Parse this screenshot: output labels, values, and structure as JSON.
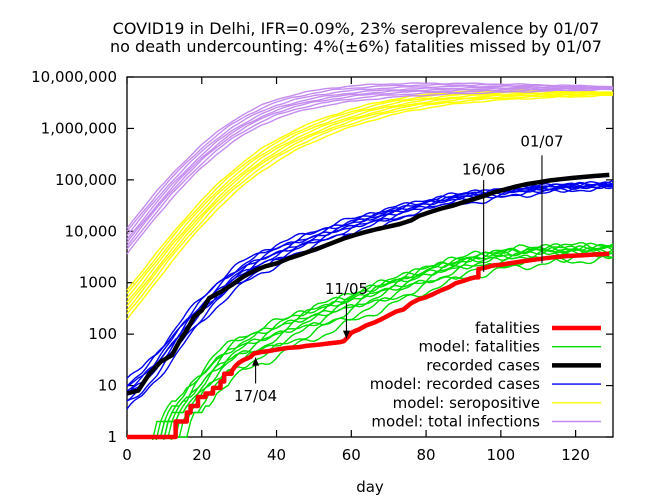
{
  "title": {
    "line1": "COVID19 in Delhi, IFR=0.09%, 23% seroprevalence by 01/07",
    "line2": "no death undercounting: 4%(±6%) fatalities missed by 01/07"
  },
  "chart_data": {
    "type": "line",
    "xlabel": "day",
    "x_range": [
      0,
      130
    ],
    "y_scale": "log",
    "y_range": [
      1,
      10000000
    ],
    "grid": false,
    "legend_position": "bottom-right-inside",
    "x_ticks": [
      {
        "v": 0,
        "label": "0"
      },
      {
        "v": 20,
        "label": "20"
      },
      {
        "v": 40,
        "label": "40"
      },
      {
        "v": 60,
        "label": "60"
      },
      {
        "v": 80,
        "label": "80"
      },
      {
        "v": 100,
        "label": "100"
      },
      {
        "v": 120,
        "label": "120"
      }
    ],
    "y_ticks": [
      {
        "v": 1,
        "label": "1"
      },
      {
        "v": 10,
        "label": "10"
      },
      {
        "v": 100,
        "label": "100"
      },
      {
        "v": 1000,
        "label": "1000"
      },
      {
        "v": 10000,
        "label": "10,000"
      },
      {
        "v": 100000,
        "label": "100,000"
      },
      {
        "v": 1000000,
        "label": "1,000,000"
      },
      {
        "v": 10000000,
        "label": "10,000,000"
      }
    ],
    "annotations": [
      {
        "label": "17/04",
        "day": 34.4,
        "from_value": 11,
        "to_value": 35,
        "head": "up",
        "label_value": 6.3
      },
      {
        "label": "11/05",
        "day": 58.7,
        "from_value": 400,
        "to_value": 82,
        "head": "down",
        "label_value": 760
      },
      {
        "label": "16/06",
        "day": 95.4,
        "from_value": 99000,
        "to_value": 1630,
        "head": "none",
        "label_value": 160000
      },
      {
        "label": "01/07",
        "day": 111,
        "from_value": 300000,
        "to_value": 2400,
        "head": "none",
        "label_value": 560000
      }
    ],
    "draw_order": [
      4,
      5,
      3,
      2,
      1,
      0
    ],
    "series": [
      {
        "name": "fatalities",
        "color": "#ff0000",
        "width": 4.5,
        "points": [
          [
            0,
            1
          ],
          [
            13,
            1
          ],
          [
            13,
            2
          ],
          [
            16,
            2
          ],
          [
            16,
            3
          ],
          [
            17,
            3
          ],
          [
            17,
            4
          ],
          [
            19,
            4
          ],
          [
            19,
            6
          ],
          [
            21,
            6
          ],
          [
            21,
            7
          ],
          [
            23,
            7
          ],
          [
            23,
            9
          ],
          [
            25,
            9
          ],
          [
            25,
            12
          ],
          [
            26,
            12
          ],
          [
            26,
            17
          ],
          [
            28,
            17
          ],
          [
            28,
            19
          ],
          [
            29,
            24
          ],
          [
            30,
            28
          ],
          [
            31,
            31
          ],
          [
            33,
            36
          ],
          [
            34,
            42
          ],
          [
            36,
            45
          ],
          [
            38,
            47
          ],
          [
            40,
            50
          ],
          [
            43,
            54
          ],
          [
            46,
            56
          ],
          [
            48,
            59
          ],
          [
            51,
            62
          ],
          [
            54,
            66
          ],
          [
            57,
            70
          ],
          [
            58,
            73
          ],
          [
            59,
            87
          ],
          [
            60,
            106
          ],
          [
            61,
            115
          ],
          [
            62,
            123
          ],
          [
            64,
            148
          ],
          [
            66,
            166
          ],
          [
            68,
            194
          ],
          [
            70,
            231
          ],
          [
            72,
            276
          ],
          [
            74,
            303
          ],
          [
            76,
            398
          ],
          [
            78,
            473
          ],
          [
            80,
            523
          ],
          [
            82,
            606
          ],
          [
            84,
            708
          ],
          [
            86,
            812
          ],
          [
            88,
            984
          ],
          [
            90,
            1085
          ],
          [
            92,
            1214
          ],
          [
            93,
            1271
          ],
          [
            94,
            1271
          ],
          [
            94,
            1837
          ],
          [
            96,
            1969
          ],
          [
            98,
            2175
          ],
          [
            100,
            2233
          ],
          [
            102,
            2365
          ],
          [
            104,
            2480
          ],
          [
            106,
            2623
          ],
          [
            108,
            2742
          ],
          [
            110,
            2864
          ],
          [
            112,
            3000
          ],
          [
            114,
            3115
          ],
          [
            116,
            3213
          ],
          [
            118,
            3300
          ],
          [
            120,
            3371
          ],
          [
            122,
            3432
          ],
          [
            124,
            3487
          ],
          [
            126,
            3545
          ],
          [
            129,
            3663
          ]
        ]
      },
      {
        "name": "model: fatalities",
        "color": "#00dd00",
        "width": 1.4,
        "points": [
          [
            6,
            0.5
          ],
          [
            9,
            1
          ],
          [
            12,
            2
          ],
          [
            15,
            3.5
          ],
          [
            18,
            6.5
          ],
          [
            21,
            12
          ],
          [
            24,
            21
          ],
          [
            27,
            33
          ],
          [
            30,
            46
          ],
          [
            33,
            58
          ],
          [
            36,
            72
          ],
          [
            39,
            92
          ],
          [
            42,
            118
          ],
          [
            45,
            148
          ],
          [
            48,
            180
          ],
          [
            51,
            220
          ],
          [
            54,
            268
          ],
          [
            57,
            330
          ],
          [
            60,
            400
          ],
          [
            63,
            490
          ],
          [
            66,
            600
          ],
          [
            69,
            730
          ],
          [
            72,
            880
          ],
          [
            75,
            1060
          ],
          [
            78,
            1270
          ],
          [
            81,
            1520
          ],
          [
            84,
            1800
          ],
          [
            87,
            2100
          ],
          [
            90,
            2420
          ],
          [
            93,
            2750
          ],
          [
            96,
            2900
          ],
          [
            99,
            3200
          ],
          [
            102,
            3450
          ],
          [
            105,
            3680
          ],
          [
            108,
            3900
          ],
          [
            111,
            4050
          ],
          [
            114,
            4180
          ],
          [
            117,
            4280
          ],
          [
            120,
            4370
          ],
          [
            124,
            4460
          ],
          [
            130,
            4570
          ]
        ],
        "ensemble": {
          "starts": [
            0.3,
            0.45,
            0.6,
            0.78,
            0.95,
            1.1,
            1.3,
            1.55,
            1.85,
            2.3
          ],
          "ends": [
            0.64,
            0.75,
            0.84,
            0.92,
            0.99,
            1.05,
            1.1,
            1.16,
            1.05,
            0.88
          ],
          "jitter": 0.13,
          "quantize": true
        }
      },
      {
        "name": "recorded cases",
        "color": "#000000",
        "width": 4.5,
        "points": [
          [
            0,
            7
          ],
          [
            3,
            8
          ],
          [
            6,
            17
          ],
          [
            9,
            29
          ],
          [
            12,
            39
          ],
          [
            14,
            72
          ],
          [
            16,
            120
          ],
          [
            18,
            219
          ],
          [
            20,
            290
          ],
          [
            22,
            503
          ],
          [
            25,
            660
          ],
          [
            28,
            903
          ],
          [
            31,
            1300
          ],
          [
            34,
            1707
          ],
          [
            37,
            2081
          ],
          [
            40,
            2376
          ],
          [
            43,
            2919
          ],
          [
            46,
            3439
          ],
          [
            49,
            4122
          ],
          [
            52,
            4898
          ],
          [
            55,
            5980
          ],
          [
            58,
            7233
          ],
          [
            61,
            8470
          ],
          [
            64,
            9755
          ],
          [
            67,
            11088
          ],
          [
            70,
            12319
          ],
          [
            73,
            13860
          ],
          [
            76,
            16281
          ],
          [
            78,
            19844
          ],
          [
            81,
            23645
          ],
          [
            84,
            27654
          ],
          [
            87,
            31309
          ],
          [
            90,
            36824
          ],
          [
            93,
            42829
          ],
          [
            96,
            49979
          ],
          [
            98,
            56746
          ],
          [
            101,
            64685
          ],
          [
            104,
            73780
          ],
          [
            107,
            82725
          ],
          [
            110,
            89802
          ],
          [
            113,
            97200
          ],
          [
            116,
            102831
          ],
          [
            119,
            108595
          ],
          [
            122,
            113740
          ],
          [
            125,
            118645
          ],
          [
            129,
            125096
          ]
        ]
      },
      {
        "name": "model: recorded cases",
        "color": "#0000ee",
        "width": 1.4,
        "points": [
          [
            0,
            7
          ],
          [
            4,
            12
          ],
          [
            8,
            25
          ],
          [
            12,
            60
          ],
          [
            16,
            145
          ],
          [
            20,
            310
          ],
          [
            24,
            620
          ],
          [
            28,
            1120
          ],
          [
            32,
            1800
          ],
          [
            36,
            2650
          ],
          [
            40,
            3600
          ],
          [
            44,
            4800
          ],
          [
            48,
            6200
          ],
          [
            52,
            8000
          ],
          [
            56,
            10100
          ],
          [
            60,
            12600
          ],
          [
            64,
            15600
          ],
          [
            68,
            19100
          ],
          [
            72,
            23100
          ],
          [
            76,
            27600
          ],
          [
            80,
            32500
          ],
          [
            84,
            37900
          ],
          [
            88,
            43600
          ],
          [
            92,
            49400
          ],
          [
            96,
            52500
          ],
          [
            100,
            57500
          ],
          [
            104,
            62000
          ],
          [
            108,
            66000
          ],
          [
            112,
            69500
          ],
          [
            116,
            72500
          ],
          [
            120,
            75500
          ],
          [
            124,
            78000
          ],
          [
            130,
            81500
          ]
        ],
        "ensemble": {
          "starts": [
            0.5,
            0.65,
            0.8,
            0.92,
            1.0,
            1.12,
            1.3,
            1.55,
            1.85
          ],
          "ends": [
            0.88,
            0.93,
            0.97,
            1.0,
            1.03,
            1.06,
            1.04,
            0.99,
            0.94
          ],
          "jitter": 0.09,
          "quantize": false
        }
      },
      {
        "name": "model: seropositive",
        "color": "#ffff00",
        "width": 1.4,
        "points": [
          [
            0,
            350
          ],
          [
            4,
            800
          ],
          [
            8,
            1900
          ],
          [
            12,
            4500
          ],
          [
            16,
            10000
          ],
          [
            20,
            21000
          ],
          [
            24,
            43000
          ],
          [
            28,
            80000
          ],
          [
            32,
            140000
          ],
          [
            36,
            230000
          ],
          [
            40,
            350000
          ],
          [
            45,
            560000
          ],
          [
            50,
            820000
          ],
          [
            55,
            1150000
          ],
          [
            60,
            1520000
          ],
          [
            65,
            1950000
          ],
          [
            70,
            2400000
          ],
          [
            75,
            2850000
          ],
          [
            80,
            3250000
          ],
          [
            85,
            3600000
          ],
          [
            90,
            3900000
          ],
          [
            95,
            4120000
          ],
          [
            100,
            4300000
          ],
          [
            105,
            4420000
          ],
          [
            110,
            4500000
          ],
          [
            115,
            4560000
          ],
          [
            120,
            4600000
          ],
          [
            125,
            4640000
          ],
          [
            130,
            4680000
          ]
        ],
        "ensemble": {
          "starts": [
            0.55,
            0.7,
            0.85,
            1.0,
            1.2,
            1.45,
            1.75,
            2.1
          ],
          "ends": [
            0.94,
            0.97,
            0.99,
            1.01,
            1.03,
            1.05,
            1.07,
            1.09
          ],
          "jitter": 0.018,
          "quantize": false
        }
      },
      {
        "name": "model: total infections",
        "color": "#c58cf0",
        "width": 1.4,
        "points": [
          [
            0,
            6000
          ],
          [
            4,
            14000
          ],
          [
            8,
            32000
          ],
          [
            12,
            70000
          ],
          [
            16,
            140000
          ],
          [
            20,
            270000
          ],
          [
            24,
            480000
          ],
          [
            28,
            800000
          ],
          [
            32,
            1200000
          ],
          [
            36,
            1700000
          ],
          [
            40,
            2250000
          ],
          [
            45,
            2900000
          ],
          [
            50,
            3500000
          ],
          [
            55,
            4050000
          ],
          [
            60,
            4500000
          ],
          [
            65,
            4880000
          ],
          [
            70,
            5180000
          ],
          [
            75,
            5400000
          ],
          [
            80,
            5560000
          ],
          [
            85,
            5680000
          ],
          [
            90,
            5780000
          ],
          [
            95,
            5850000
          ],
          [
            100,
            5900000
          ],
          [
            105,
            5940000
          ],
          [
            110,
            5970000
          ],
          [
            115,
            5990000
          ],
          [
            120,
            6010000
          ],
          [
            125,
            6030000
          ],
          [
            130,
            6050000
          ]
        ],
        "ensemble": {
          "starts": [
            0.6,
            0.74,
            0.88,
            1.0,
            1.16,
            1.38,
            1.65,
            1.95
          ],
          "ends": [
            0.95,
            0.97,
            0.99,
            1.01,
            1.02,
            1.04,
            1.06,
            1.08
          ],
          "jitter": 0.018,
          "quantize": false
        }
      }
    ]
  }
}
